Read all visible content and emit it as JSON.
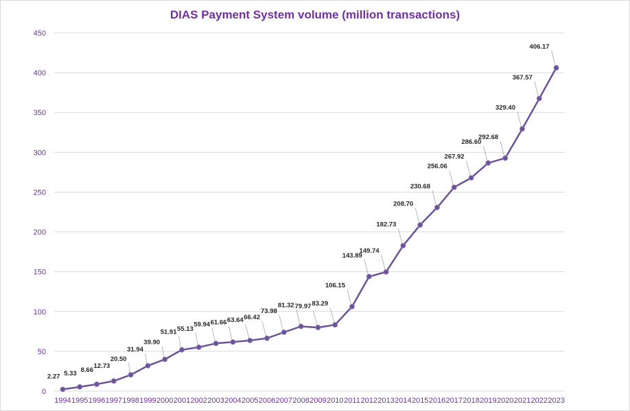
{
  "chart_data": {
    "type": "line",
    "title": "DIAS Payment System volume (million transactions)",
    "xlabel": "",
    "ylabel": "",
    "ylim": [
      0,
      450
    ],
    "yticks": [
      0,
      50,
      100,
      150,
      200,
      250,
      300,
      350,
      400,
      450
    ],
    "grid": "horizontal",
    "legend": "none",
    "categories": [
      "1994",
      "1995",
      "1996",
      "1997",
      "1998",
      "1999",
      "2000",
      "2001",
      "2002",
      "2003",
      "2004",
      "2005",
      "2006",
      "2007",
      "2008",
      "2009",
      "2010",
      "2011",
      "2012",
      "2013",
      "2014",
      "2015",
      "2016",
      "2017",
      "2018",
      "2019",
      "2020",
      "2021",
      "2022",
      "2023"
    ],
    "series": [
      {
        "values": [
          2.27,
          5.33,
          8.66,
          12.73,
          20.5,
          31.94,
          39.9,
          51.91,
          55.13,
          59.94,
          61.66,
          63.64,
          66.42,
          73.98,
          81.32,
          79.97,
          83.29,
          106.15,
          143.89,
          149.74,
          182.73,
          208.7,
          230.68,
          256.06,
          267.92,
          286.6,
          292.68,
          329.4,
          367.57,
          406.17
        ],
        "labels": [
          "2.27",
          "5.33",
          "8.66",
          "12.73",
          "20.50",
          "31.94",
          "39.90",
          "51.91",
          "55.13",
          "59.94",
          "61.66",
          "63.64",
          "66.42",
          "73.98",
          "81.32",
          "79.97",
          "83.29",
          "106.15",
          "143.89",
          "149.74",
          "182.73",
          "208.70",
          "230.68",
          "256.06",
          "267.92",
          "286.60",
          "292.68",
          "329.40",
          "367.57",
          "406.17"
        ]
      }
    ],
    "colors": {
      "line": "#6b5196",
      "title": "#7030a0",
      "axis_text": "#7030a0",
      "grid": "#d9d9d9",
      "label_text": "#262626",
      "leader": "#a6a6a6"
    }
  }
}
